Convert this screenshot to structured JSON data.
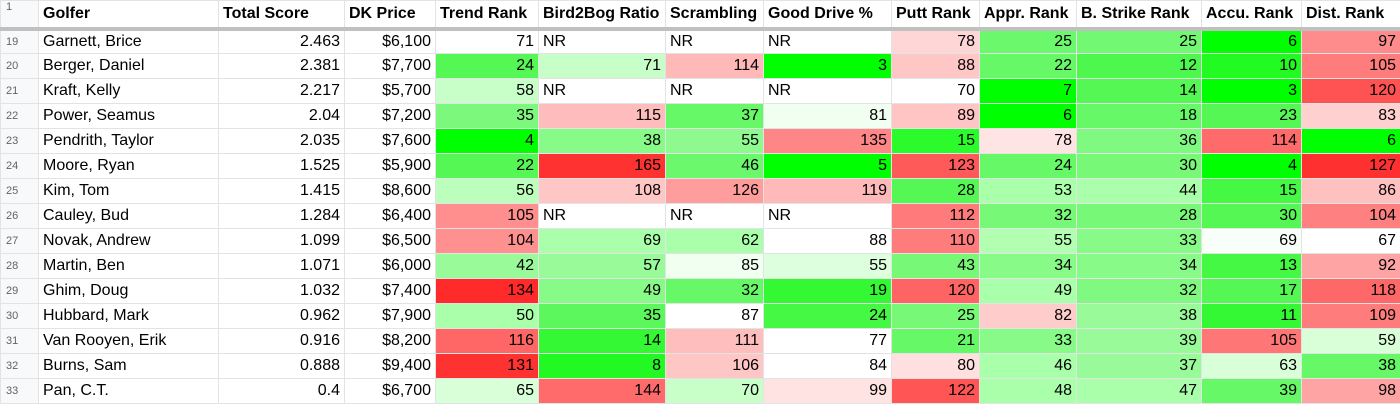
{
  "header_row_number": "1",
  "columns": [
    "Golfer",
    "Total Score",
    "DK Price",
    "Trend Rank",
    "Bird2Bog Ratio",
    "Scrambling",
    "Good Drive %",
    "Putt Rank",
    "Appr. Rank",
    "B. Strike Rank",
    "Accu. Rank",
    "Dist. Rank"
  ],
  "rows": [
    {
      "num": "19",
      "cells": [
        "Garnett, Brice",
        "2.463",
        "$6,100",
        "71",
        "NR",
        "NR",
        "NR",
        "78",
        "25",
        "25",
        "6",
        "97"
      ]
    },
    {
      "num": "20",
      "cells": [
        "Berger, Daniel",
        "2.381",
        "$7,700",
        "24",
        "71",
        "114",
        "3",
        "88",
        "22",
        "12",
        "10",
        "105"
      ]
    },
    {
      "num": "21",
      "cells": [
        "Kraft, Kelly",
        "2.217",
        "$5,700",
        "58",
        "NR",
        "NR",
        "NR",
        "70",
        "7",
        "14",
        "3",
        "120"
      ]
    },
    {
      "num": "22",
      "cells": [
        "Power, Seamus",
        "2.04",
        "$7,200",
        "35",
        "115",
        "37",
        "81",
        "89",
        "6",
        "18",
        "23",
        "83"
      ]
    },
    {
      "num": "23",
      "cells": [
        "Pendrith, Taylor",
        "2.035",
        "$7,600",
        "4",
        "38",
        "55",
        "135",
        "15",
        "78",
        "36",
        "114",
        "6"
      ]
    },
    {
      "num": "24",
      "cells": [
        "Moore, Ryan",
        "1.525",
        "$5,900",
        "22",
        "165",
        "46",
        "5",
        "123",
        "24",
        "30",
        "4",
        "127"
      ]
    },
    {
      "num": "25",
      "cells": [
        "Kim, Tom",
        "1.415",
        "$8,600",
        "56",
        "108",
        "126",
        "119",
        "28",
        "53",
        "44",
        "15",
        "86"
      ]
    },
    {
      "num": "26",
      "cells": [
        "Cauley, Bud",
        "1.284",
        "$6,400",
        "105",
        "NR",
        "NR",
        "NR",
        "112",
        "32",
        "28",
        "30",
        "104"
      ]
    },
    {
      "num": "27",
      "cells": [
        "Novak, Andrew",
        "1.099",
        "$6,500",
        "104",
        "69",
        "62",
        "88",
        "110",
        "55",
        "33",
        "69",
        "67"
      ]
    },
    {
      "num": "28",
      "cells": [
        "Martin, Ben",
        "1.071",
        "$6,000",
        "42",
        "57",
        "85",
        "55",
        "43",
        "34",
        "34",
        "13",
        "92"
      ]
    },
    {
      "num": "29",
      "cells": [
        "Ghim, Doug",
        "1.032",
        "$7,400",
        "134",
        "49",
        "32",
        "19",
        "120",
        "49",
        "32",
        "17",
        "118"
      ]
    },
    {
      "num": "30",
      "cells": [
        "Hubbard, Mark",
        "0.962",
        "$7,900",
        "50",
        "35",
        "87",
        "24",
        "25",
        "82",
        "38",
        "11",
        "109"
      ]
    },
    {
      "num": "31",
      "cells": [
        "Van Rooyen, Erik",
        "0.916",
        "$8,200",
        "116",
        "14",
        "111",
        "77",
        "21",
        "33",
        "39",
        "105",
        "59"
      ]
    },
    {
      "num": "32",
      "cells": [
        "Burns, Sam",
        "0.888",
        "$9,400",
        "131",
        "8",
        "106",
        "84",
        "80",
        "46",
        "37",
        "63",
        "38"
      ]
    },
    {
      "num": "33",
      "cells": [
        "Pan, C.T.",
        "0.4",
        "$6,700",
        "65",
        "144",
        "70",
        "99",
        "122",
        "48",
        "47",
        "39",
        "98"
      ]
    }
  ],
  "fills": [
    [
      "",
      "",
      "",
      "#ffffff",
      "#ffffff",
      "#ffffff",
      "#ffffff",
      "#ffd6d6",
      "#6cf86c",
      "#72f872",
      "#00ff00",
      "#ff8c8c"
    ],
    [
      "",
      "",
      "",
      "#55f755",
      "#c8ffc8",
      "#ffb9b9",
      "#00ff00",
      "#ffc6c6",
      "#66f866",
      "#4df74d",
      "#22fb22",
      "#ff7c7c"
    ],
    [
      "",
      "",
      "",
      "#c8ffc8",
      "#ffffff",
      "#ffffff",
      "#ffffff",
      "#ffffff",
      "#00ff00",
      "#55f755",
      "#00ff00",
      "#ff5252"
    ],
    [
      "",
      "",
      "",
      "#7cf97c",
      "#ffbcbc",
      "#66f866",
      "#f0fff0",
      "#ffc4c4",
      "#00ff00",
      "#66f866",
      "#55f755",
      "#ffd0d0"
    ],
    [
      "",
      "",
      "",
      "#00ff00",
      "#88fa88",
      "#8ef98e",
      "#ff8686",
      "#2bfa2b",
      "#ffe4e4",
      "#80f980",
      "#ff6a6a",
      "#00ff00"
    ],
    [
      "",
      "",
      "",
      "#55f755",
      "#ff3232",
      "#6cf86c",
      "#00ff00",
      "#ff5a5a",
      "#66f866",
      "#77f877",
      "#00ff00",
      "#ff3030"
    ],
    [
      "",
      "",
      "",
      "#bcffbc",
      "#ffc6c6",
      "#ff9c9c",
      "#ffb9b9",
      "#55f755",
      "#aaffaa",
      "#aaffaa",
      "#44f844",
      "#ffc0c0"
    ],
    [
      "",
      "",
      "",
      "#ff8e8e",
      "#ffffff",
      "#ffffff",
      "#ffffff",
      "#ff7a7a",
      "#77f877",
      "#77f877",
      "#55f755",
      "#ff8080"
    ],
    [
      "",
      "",
      "",
      "#ff9090",
      "#aaffaa",
      "#aaffaa",
      "#ffffff",
      "#ff7c7c",
      "#b2ffb2",
      "#88fa88",
      "#f8fff8",
      "#ffffff"
    ],
    [
      "",
      "",
      "",
      "#99fa99",
      "#99fa99",
      "#f0fff0",
      "#ddffdd",
      "#77f877",
      "#88fa88",
      "#88fa88",
      "#44f844",
      "#ffa4a4"
    ],
    [
      "",
      "",
      "",
      "#ff2a2a",
      "#88fa88",
      "#66f866",
      "#33f833",
      "#ff6464",
      "#aaffaa",
      "#80f980",
      "#55f755",
      "#ff6868"
    ],
    [
      "",
      "",
      "",
      "#aaffaa",
      "#5cf75c",
      "#ffffff",
      "#44f844",
      "#77f877",
      "#ffcccc",
      "#99fa99",
      "#33f833",
      "#ff7c7c"
    ],
    [
      "",
      "",
      "",
      "#ff6666",
      "#33f833",
      "#ffbebe",
      "#ffffff",
      "#66f866",
      "#88fa88",
      "#99fa99",
      "#ff7676",
      "#d8ffd8"
    ],
    [
      "",
      "",
      "",
      "#ff3232",
      "#22f922",
      "#ffc6c6",
      "#ffffff",
      "#ffe0e0",
      "#aaffaa",
      "#99fa99",
      "#d8ffd8",
      "#66f866"
    ],
    [
      "",
      "",
      "",
      "#d8ffd8",
      "#ff6a6a",
      "#c8ffc8",
      "#ffe2e2",
      "#ff5555",
      "#aaffaa",
      "#aaffaa",
      "#66f866",
      "#ffa4a4"
    ]
  ]
}
